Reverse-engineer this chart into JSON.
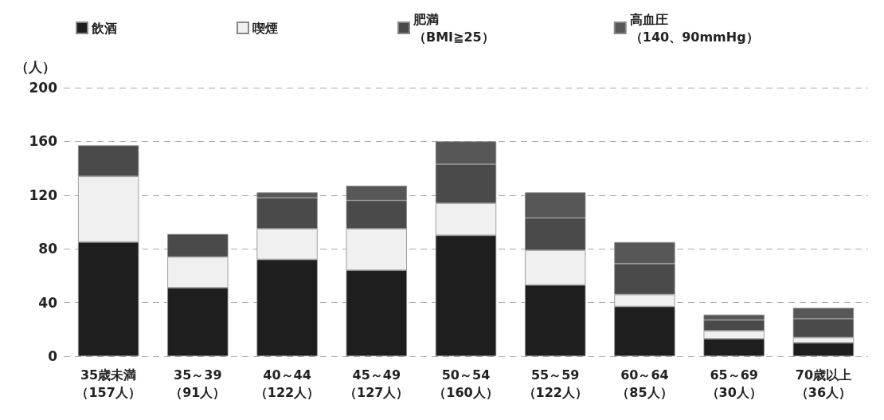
{
  "chart_data": {
    "type": "bar",
    "stacked": true,
    "ylabel": "（人）",
    "categories": [
      "35歳未満（157人）",
      "35～39（91人）",
      "40～44（122人）",
      "45～49（127人）",
      "50～54（160人）",
      "55～59（122人）",
      "60～64（85人）",
      "65～69（30人）",
      "70歳以上（36人）"
    ],
    "series": [
      {
        "name": "飲酒",
        "color": "#1e1e1e",
        "values": [
          85,
          51,
          72,
          64,
          90,
          53,
          37,
          13,
          10
        ]
      },
      {
        "name": "喫煙",
        "color": "#f0f0f0",
        "values": [
          49,
          23,
          23,
          31,
          24,
          26,
          9,
          6,
          4
        ]
      },
      {
        "name": "肥満（BMI≧25）",
        "color": "#4a4a4a",
        "values": [
          23,
          17,
          23,
          21,
          29,
          24,
          23,
          8,
          14
        ]
      },
      {
        "name": "高血圧（140、90mmHg）",
        "color": "#575757",
        "values": [
          0,
          0,
          4,
          11,
          17,
          19,
          16,
          4,
          8
        ]
      }
    ],
    "ylim": [
      0,
      200
    ],
    "yticks": [
      0,
      40,
      80,
      120,
      160,
      200
    ],
    "grid": "y",
    "legend": "top"
  }
}
